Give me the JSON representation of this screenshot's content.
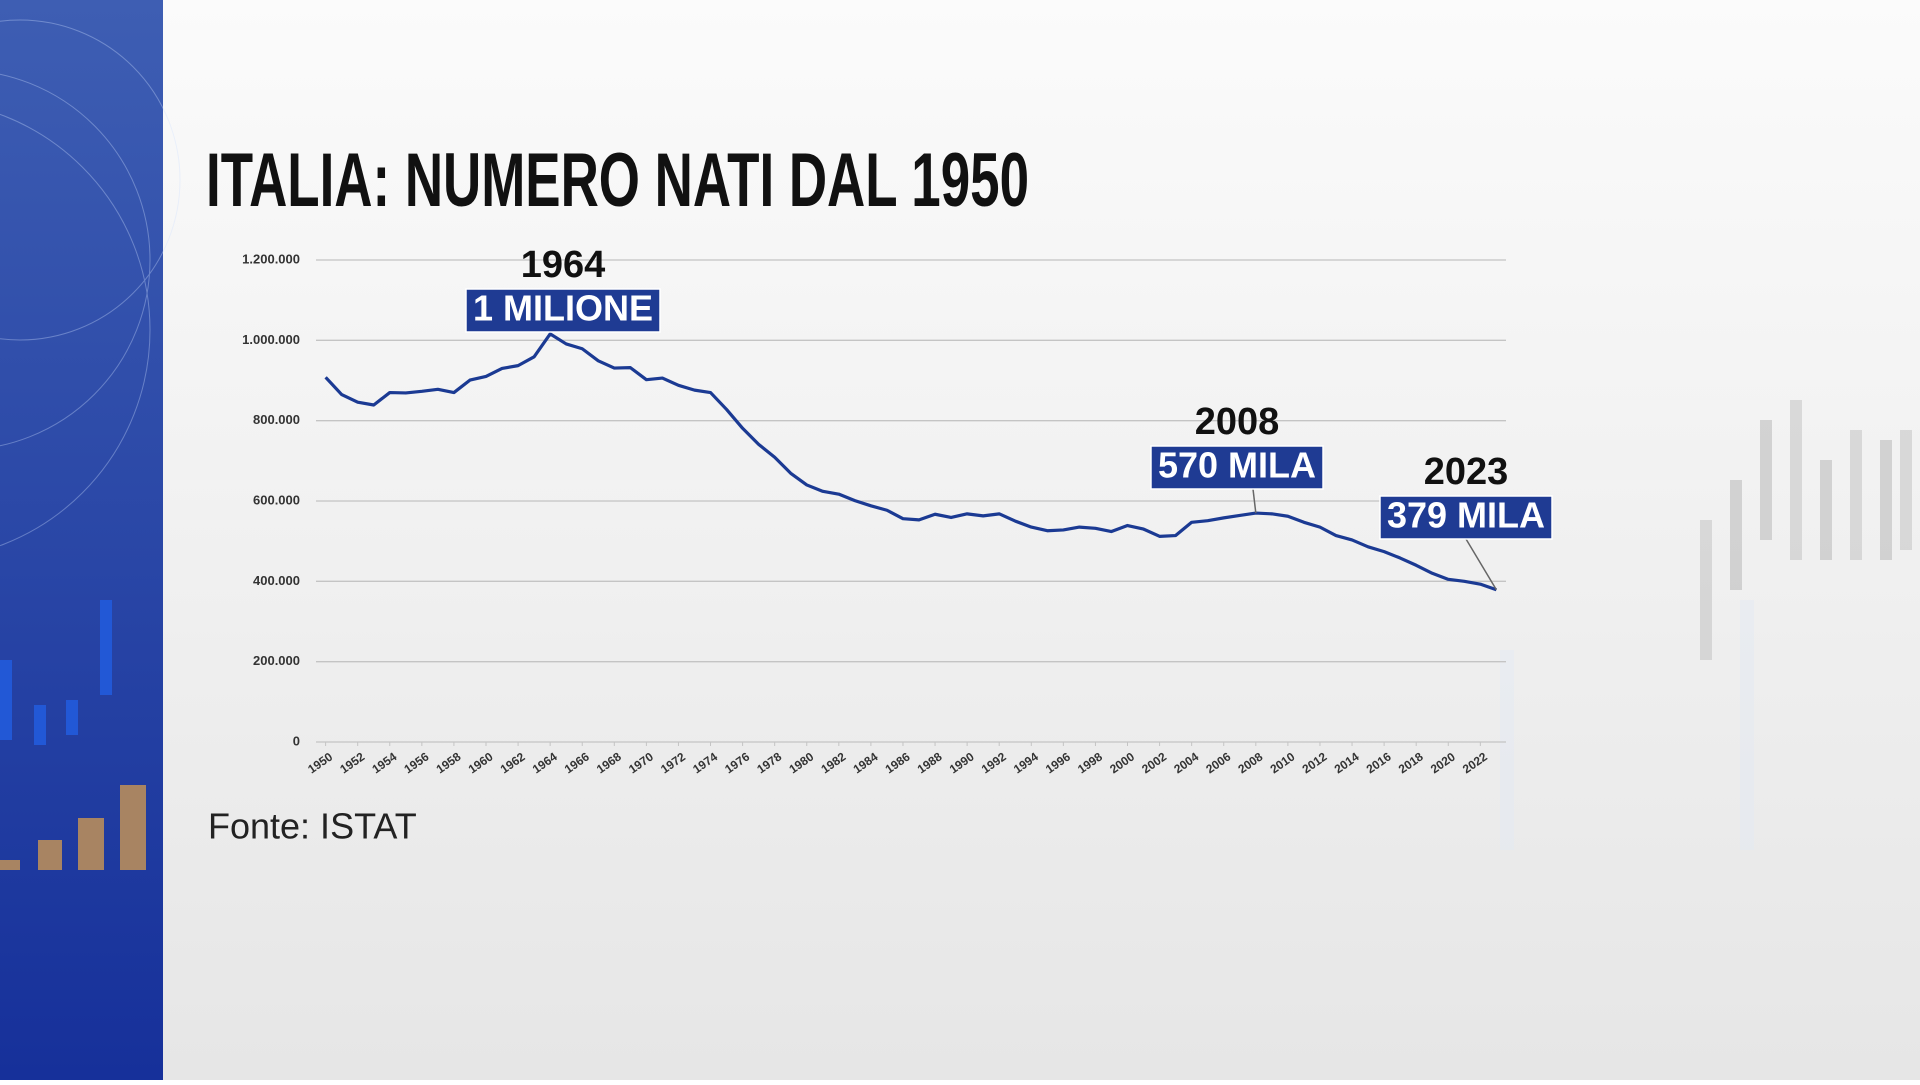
{
  "chart_data": {
    "type": "line",
    "title": "ITALIA: NUMERO NATI DAL 1950",
    "source": "Fonte: ISTAT",
    "x": [
      1950,
      1951,
      1952,
      1953,
      1954,
      1955,
      1956,
      1957,
      1958,
      1959,
      1960,
      1961,
      1962,
      1963,
      1964,
      1965,
      1966,
      1967,
      1968,
      1969,
      1970,
      1971,
      1972,
      1973,
      1974,
      1975,
      1976,
      1977,
      1978,
      1979,
      1980,
      1981,
      1982,
      1983,
      1984,
      1985,
      1986,
      1987,
      1988,
      1989,
      1990,
      1991,
      1992,
      1993,
      1994,
      1995,
      1996,
      1997,
      1998,
      1999,
      2000,
      2001,
      2002,
      2003,
      2004,
      2005,
      2006,
      2007,
      2008,
      2009,
      2010,
      2011,
      2012,
      2013,
      2014,
      2015,
      2016,
      2017,
      2018,
      2019,
      2020,
      2021,
      2022,
      2023
    ],
    "series": [
      {
        "color": "#1b3a93",
        "values": [
          908000,
          865000,
          846000,
          839000,
          870000,
          869000,
          873000,
          878000,
          870000,
          901000,
          910000,
          930000,
          937000,
          959000,
          1016000,
          991000,
          979000,
          949000,
          931000,
          932000,
          902000,
          906000,
          888000,
          876000,
          870000,
          828000,
          781000,
          741000,
          709000,
          669000,
          640000,
          624000,
          617000,
          601000,
          588000,
          577000,
          556000,
          553000,
          567000,
          559000,
          568000,
          563000,
          568000,
          550000,
          535000,
          526000,
          528000,
          535000,
          532000,
          524000,
          539000,
          530000,
          512000,
          514000,
          547000,
          551000,
          558000,
          564000,
          570000,
          568000,
          562000,
          547000,
          535000,
          514000,
          503000,
          486000,
          474000,
          458000,
          440000,
          420000,
          405000,
          400000,
          393000,
          379000
        ]
      }
    ],
    "xlim": [
      1949.4,
      2023.6
    ],
    "xticks": [
      1950,
      1952,
      1954,
      1956,
      1958,
      1960,
      1962,
      1964,
      1966,
      1968,
      1970,
      1972,
      1974,
      1976,
      1978,
      1980,
      1982,
      1984,
      1986,
      1988,
      1990,
      1992,
      1994,
      1996,
      1998,
      2000,
      2002,
      2004,
      2006,
      2008,
      2010,
      2012,
      2014,
      2016,
      2018,
      2020,
      2022
    ],
    "ylim": [
      0,
      1200000
    ],
    "yticks": [
      0,
      {
        "value": 200000,
        "label": "200.000"
      },
      {
        "value": 400000,
        "label": "400.000"
      },
      {
        "value": 600000,
        "label": "600.000"
      },
      {
        "value": 800000,
        "label": "800.000"
      },
      {
        "value": 1000000,
        "label": "1.000.000"
      },
      {
        "value": 1200000,
        "label": "1.200.000"
      }
    ],
    "grid": true,
    "annotations": [
      {
        "x": 1964,
        "title": "1964",
        "text": "1 MILIONE"
      },
      {
        "x": 2008,
        "title": "2008",
        "text": "570 MILA"
      },
      {
        "x": 2023,
        "title": "2023",
        "text": "379 MILA"
      }
    ]
  }
}
